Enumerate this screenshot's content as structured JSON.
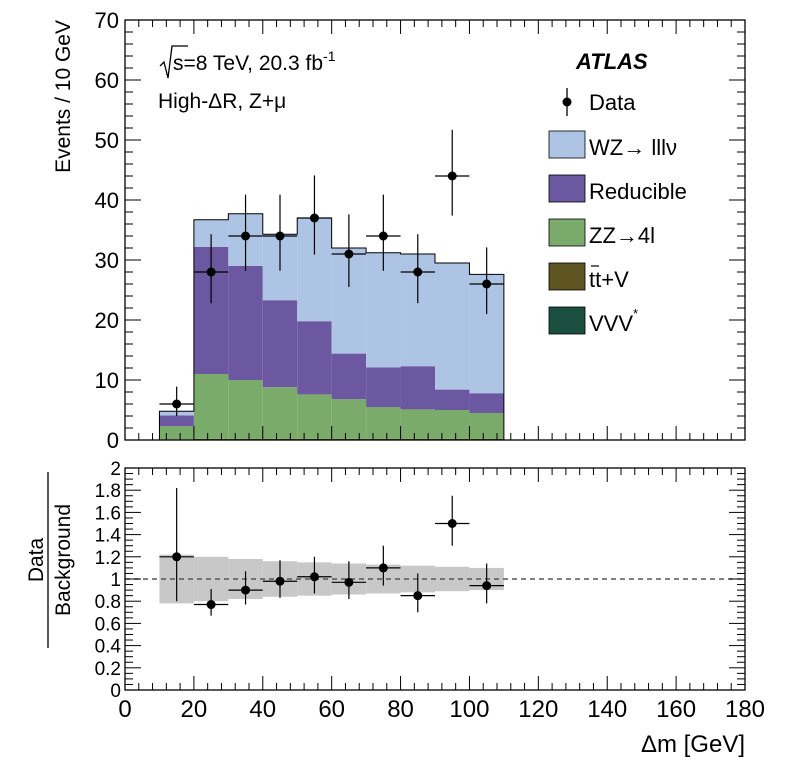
{
  "chart_data": [
    {
      "type": "bar",
      "stacked": true,
      "x_bins": [
        [
          10,
          20
        ],
        [
          20,
          30
        ],
        [
          30,
          40
        ],
        [
          40,
          50
        ],
        [
          50,
          60
        ],
        [
          60,
          70
        ],
        [
          70,
          80
        ],
        [
          80,
          90
        ],
        [
          90,
          100
        ],
        [
          100,
          110
        ]
      ],
      "xlim": [
        0,
        180
      ],
      "ylim": [
        0,
        70
      ],
      "ylabel": "Events / 10 GeV",
      "y_ticks": [
        "0",
        "10",
        "20",
        "30",
        "40",
        "50",
        "60",
        "70"
      ],
      "annotations": {
        "energy_prefix": "s=8 TeV, 20.3 fb",
        "energy_exp": "-1",
        "region": "High-ΔR, Z+μ",
        "experiment": "ATLAS"
      },
      "series": [
        {
          "name": "VVV*",
          "label": "VVV",
          "label_sup": "*",
          "color": "#1b5040",
          "values": [
            0,
            0,
            0,
            0,
            0,
            0,
            0,
            0,
            0,
            0
          ]
        },
        {
          "name": "tt+V",
          "label": "tt+V",
          "color": "#5e5422",
          "values": [
            0.1,
            0.2,
            0.2,
            0.2,
            0.2,
            0.2,
            0.2,
            0.2,
            0.2,
            0.2
          ]
        },
        {
          "name": "ZZ→4l",
          "label": "ZZ→4l",
          "color": "#7bab6a",
          "values": [
            2.2,
            10.8,
            9.8,
            8.6,
            7.4,
            6.6,
            5.3,
            4.9,
            4.8,
            4.3
          ]
        },
        {
          "name": "Reducible",
          "label": "Reducible",
          "color": "#6b58a0",
          "values": [
            1.8,
            21.2,
            19.0,
            14.5,
            12.2,
            7.6,
            6.6,
            7.2,
            3.4,
            3.3
          ]
        },
        {
          "name": "WZ→lllν",
          "label": "WZ→ lllν",
          "color": "#aec4e4",
          "values": [
            0.7,
            4.5,
            8.7,
            11.0,
            17.2,
            17.6,
            19.1,
            18.7,
            21.1,
            19.8
          ]
        }
      ],
      "data": {
        "label": "Data",
        "x": [
          15,
          25,
          35,
          45,
          55,
          65,
          75,
          85,
          95,
          105
        ],
        "y": [
          6,
          28,
          34,
          34,
          37,
          31,
          34,
          28,
          44,
          26
        ],
        "err_up": [
          2.9,
          6.3,
          6.9,
          6.9,
          7.1,
          6.6,
          6.9,
          6.3,
          7.7,
          6.1
        ],
        "err_down": [
          2.0,
          5.2,
          5.8,
          5.8,
          6.1,
          5.5,
          5.8,
          5.2,
          6.6,
          5.0
        ]
      }
    },
    {
      "type": "scatter",
      "ylabel_numerator": "Data",
      "ylabel_denominator": "Background",
      "xlabel": "Δm [GeV]",
      "xlim": [
        0,
        180
      ],
      "ylim": [
        0,
        2
      ],
      "x_ticks": [
        "0",
        "20",
        "40",
        "60",
        "80",
        "100",
        "120",
        "140",
        "160",
        "180"
      ],
      "y_ticks": [
        "0",
        "0.2",
        "0.4",
        "0.6",
        "0.8",
        "1",
        "1.2",
        "1.4",
        "1.6",
        "1.8",
        "2"
      ],
      "reference_line": 1,
      "uncertainty_band": {
        "x_bins": [
          [
            10,
            20
          ],
          [
            20,
            30
          ],
          [
            30,
            40
          ],
          [
            40,
            50
          ],
          [
            50,
            60
          ],
          [
            60,
            70
          ],
          [
            70,
            80
          ],
          [
            80,
            90
          ],
          [
            90,
            100
          ],
          [
            100,
            110
          ]
        ],
        "low": [
          0.78,
          0.8,
          0.82,
          0.84,
          0.85,
          0.86,
          0.87,
          0.88,
          0.89,
          0.9
        ],
        "high": [
          1.22,
          1.2,
          1.18,
          1.16,
          1.15,
          1.14,
          1.13,
          1.12,
          1.11,
          1.1
        ]
      },
      "points": {
        "x": [
          15,
          25,
          35,
          45,
          55,
          65,
          75,
          85,
          95,
          105
        ],
        "y": [
          1.2,
          0.77,
          0.9,
          0.98,
          1.02,
          0.97,
          1.1,
          0.85,
          1.5,
          0.94
        ],
        "err_up": [
          0.62,
          0.14,
          0.17,
          0.19,
          0.18,
          0.19,
          0.2,
          0.2,
          0.25,
          0.2
        ],
        "err_down": [
          0.4,
          0.1,
          0.13,
          0.15,
          0.15,
          0.15,
          0.16,
          0.15,
          0.2,
          0.16
        ]
      }
    }
  ]
}
